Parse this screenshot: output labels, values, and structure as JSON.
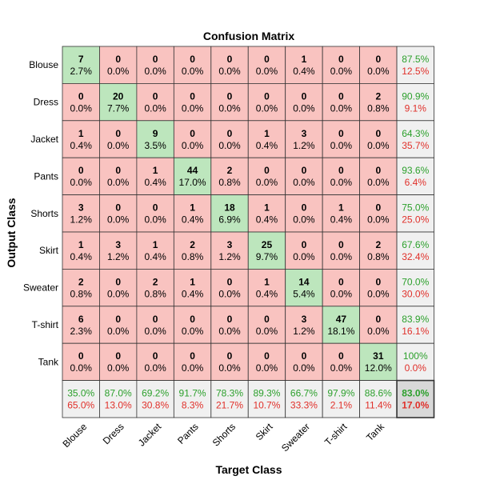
{
  "chart_data": {
    "type": "heatmap",
    "title": "Confusion Matrix",
    "xlabel": "Target Class",
    "ylabel": "Output Class",
    "classes": [
      "Blouse",
      "Dress",
      "Jacket",
      "Pants",
      "Shorts",
      "Skirt",
      "Sweater",
      "T-shirt",
      "Tank"
    ],
    "counts": [
      [
        7,
        0,
        0,
        0,
        0,
        0,
        1,
        0,
        0
      ],
      [
        0,
        20,
        0,
        0,
        0,
        0,
        0,
        0,
        2
      ],
      [
        1,
        0,
        9,
        0,
        0,
        1,
        3,
        0,
        0
      ],
      [
        0,
        0,
        1,
        44,
        2,
        0,
        0,
        0,
        0
      ],
      [
        3,
        0,
        0,
        1,
        18,
        1,
        0,
        1,
        0
      ],
      [
        1,
        3,
        1,
        2,
        3,
        25,
        0,
        0,
        2
      ],
      [
        2,
        0,
        2,
        1,
        0,
        1,
        14,
        0,
        0
      ],
      [
        6,
        0,
        0,
        0,
        0,
        0,
        3,
        47,
        0
      ],
      [
        0,
        0,
        0,
        0,
        0,
        0,
        0,
        0,
        31
      ]
    ],
    "percents": [
      [
        "2.7%",
        "0.0%",
        "0.0%",
        "0.0%",
        "0.0%",
        "0.0%",
        "0.4%",
        "0.0%",
        "0.0%"
      ],
      [
        "0.0%",
        "7.7%",
        "0.0%",
        "0.0%",
        "0.0%",
        "0.0%",
        "0.0%",
        "0.0%",
        "0.8%"
      ],
      [
        "0.4%",
        "0.0%",
        "3.5%",
        "0.0%",
        "0.0%",
        "0.4%",
        "1.2%",
        "0.0%",
        "0.0%"
      ],
      [
        "0.0%",
        "0.0%",
        "0.4%",
        "17.0%",
        "0.8%",
        "0.0%",
        "0.0%",
        "0.0%",
        "0.0%"
      ],
      [
        "1.2%",
        "0.0%",
        "0.0%",
        "0.4%",
        "6.9%",
        "0.4%",
        "0.0%",
        "0.4%",
        "0.0%"
      ],
      [
        "0.4%",
        "1.2%",
        "0.4%",
        "0.8%",
        "1.2%",
        "9.7%",
        "0.0%",
        "0.0%",
        "0.8%"
      ],
      [
        "0.8%",
        "0.0%",
        "0.8%",
        "0.4%",
        "0.0%",
        "0.4%",
        "5.4%",
        "0.0%",
        "0.0%"
      ],
      [
        "2.3%",
        "0.0%",
        "0.0%",
        "0.0%",
        "0.0%",
        "0.0%",
        "1.2%",
        "18.1%",
        "0.0%"
      ],
      [
        "0.0%",
        "0.0%",
        "0.0%",
        "0.0%",
        "0.0%",
        "0.0%",
        "0.0%",
        "0.0%",
        "12.0%"
      ]
    ],
    "row_summary": [
      [
        "87.5%",
        "12.5%"
      ],
      [
        "90.9%",
        "9.1%"
      ],
      [
        "64.3%",
        "35.7%"
      ],
      [
        "93.6%",
        "6.4%"
      ],
      [
        "75.0%",
        "25.0%"
      ],
      [
        "67.6%",
        "32.4%"
      ],
      [
        "70.0%",
        "30.0%"
      ],
      [
        "83.9%",
        "16.1%"
      ],
      [
        "100%",
        "0.0%"
      ]
    ],
    "col_summary": [
      [
        "35.0%",
        "65.0%"
      ],
      [
        "87.0%",
        "13.0%"
      ],
      [
        "69.2%",
        "30.8%"
      ],
      [
        "91.7%",
        "8.3%"
      ],
      [
        "78.3%",
        "21.7%"
      ],
      [
        "89.3%",
        "10.7%"
      ],
      [
        "66.7%",
        "33.3%"
      ],
      [
        "97.9%",
        "2.1%"
      ],
      [
        "88.6%",
        "11.4%"
      ]
    ],
    "overall": [
      "83.0%",
      "17.0%"
    ],
    "colors": {
      "diagonal": "#bde6bd",
      "off_diagonal": "#f9c3c0",
      "summary": "#f0f0f0",
      "overall": "#d8d8d8",
      "correct_text": "#2ca02c",
      "error_text": "#e0302a"
    }
  }
}
